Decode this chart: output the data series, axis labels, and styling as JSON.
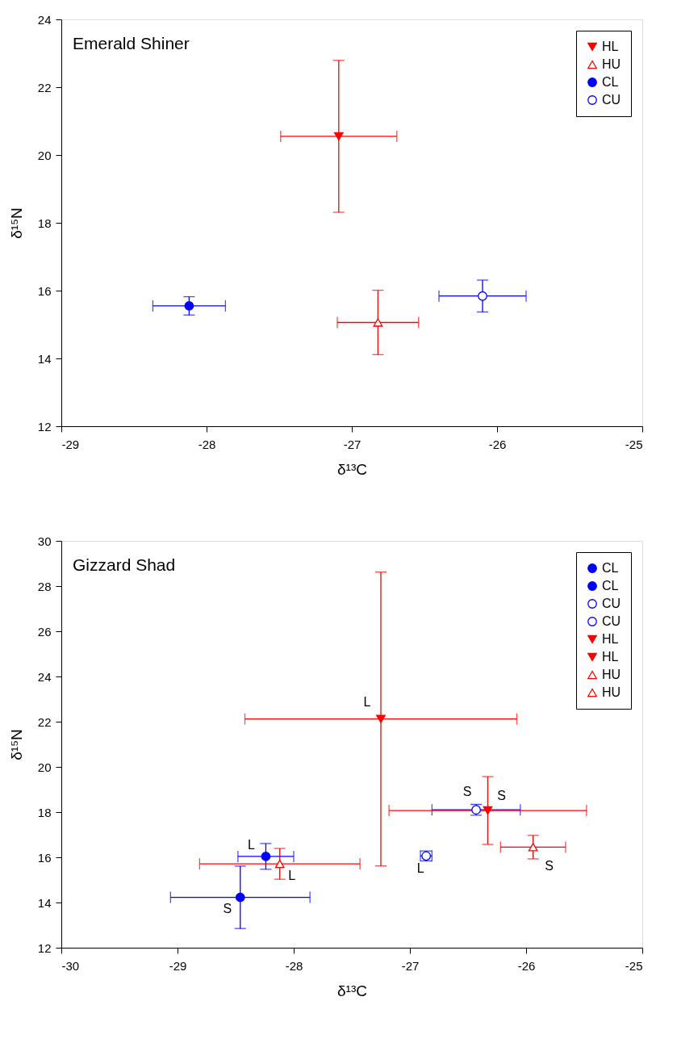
{
  "chart_data": [
    {
      "type": "scatter",
      "title": "Emerald Shiner",
      "xlabel": "δ¹³C",
      "ylabel": "δ¹⁵N",
      "xlim": [
        -29,
        -25
      ],
      "xticks": [
        -29,
        -28,
        -27,
        -26,
        -25
      ],
      "ylim": [
        12,
        24
      ],
      "yticks": [
        12,
        14,
        16,
        18,
        20,
        22,
        24
      ],
      "legend": "top right",
      "grid": false,
      "series": [
        {
          "name": "HL",
          "color": "#ff0000",
          "marker": "triangle-down",
          "x": [
            -27.09
          ],
          "values": [
            20.55
          ],
          "errors": [
            2.24
          ],
          "xerrors": [
            0.4
          ]
        },
        {
          "name": "HU",
          "color": "#ff0000",
          "marker": "triangle-open",
          "x": [
            -26.82
          ],
          "values": [
            15.06
          ],
          "errors": [
            0.95
          ],
          "xerrors": [
            0.28
          ]
        },
        {
          "name": "CL",
          "color": "#0000ff",
          "marker": "circle",
          "x": [
            -28.12
          ],
          "values": [
            15.55
          ],
          "errors": [
            0.27
          ],
          "xerrors": [
            0.25
          ]
        },
        {
          "name": "CU",
          "color": "#0000ff",
          "marker": "circle-open",
          "x": [
            -26.1
          ],
          "values": [
            15.84
          ],
          "errors": [
            0.47
          ],
          "xerrors": [
            0.3
          ]
        }
      ]
    },
    {
      "type": "scatter",
      "title": "Gizzard Shad",
      "xlabel": "δ¹³C",
      "ylabel": "δ¹⁵N",
      "xlim": [
        -30,
        -25
      ],
      "xticks": [
        -30,
        -29,
        -28,
        -27,
        -26,
        -25
      ],
      "ylim": [
        12,
        30
      ],
      "yticks": [
        12,
        14,
        16,
        18,
        20,
        22,
        24,
        26,
        28,
        30
      ],
      "legend": "top right",
      "grid": false,
      "series": [
        {
          "name": "CL",
          "color": "#0000ff",
          "marker": "circle",
          "x": [
            -28.24
          ],
          "values": [
            16.04
          ],
          "errors": [
            0.57
          ],
          "xerrors": [
            0.24
          ]
        },
        {
          "name": "CL",
          "color": "#0000ff",
          "marker": "circle",
          "x": [
            -28.46
          ],
          "values": [
            14.23
          ],
          "errors": [
            1.38
          ],
          "xerrors": [
            0.6
          ]
        },
        {
          "name": "CU",
          "color": "#0000ff",
          "marker": "circle-open",
          "x": [
            -26.86
          ],
          "values": [
            16.06
          ],
          "errors": [
            0.22
          ],
          "xerrors": [
            0.05
          ]
        },
        {
          "name": "CU",
          "color": "#0000ff",
          "marker": "circle-open",
          "x": [
            -26.43
          ],
          "values": [
            18.1
          ],
          "errors": [
            0.24
          ],
          "xerrors": [
            0.38
          ]
        },
        {
          "name": "HL",
          "color": "#ff0000",
          "marker": "triangle-down",
          "x": [
            -27.25
          ],
          "values": [
            22.12
          ],
          "errors": [
            6.5
          ],
          "xerrors": [
            1.17
          ]
        },
        {
          "name": "HL",
          "color": "#ff0000",
          "marker": "triangle-down",
          "x": [
            -26.33
          ],
          "values": [
            18.07
          ],
          "errors": [
            1.5
          ],
          "xerrors": [
            0.85
          ]
        },
        {
          "name": "HU",
          "color": "#ff0000",
          "marker": "triangle-open",
          "x": [
            -28.12
          ],
          "values": [
            15.71
          ],
          "errors": [
            0.68
          ],
          "xerrors": [
            0.69
          ]
        },
        {
          "name": "HU",
          "color": "#ff0000",
          "marker": "triangle-open",
          "x": [
            -25.94
          ],
          "values": [
            16.45
          ],
          "errors": [
            0.52
          ],
          "xerrors": [
            0.28
          ]
        }
      ],
      "annotations": [
        {
          "text": "L",
          "x": -28.24,
          "y": 16.04
        },
        {
          "text": "S",
          "x": -28.46,
          "y": 14.23
        },
        {
          "text": "L",
          "x": -26.86,
          "y": 16.06
        },
        {
          "text": "S",
          "x": -26.43,
          "y": 18.1
        },
        {
          "text": "L",
          "x": -27.25,
          "y": 22.12
        },
        {
          "text": "S",
          "x": -26.33,
          "y": 18.07
        },
        {
          "text": "L",
          "x": -28.12,
          "y": 15.71
        },
        {
          "text": "S",
          "x": -25.94,
          "y": 16.45
        }
      ]
    }
  ]
}
